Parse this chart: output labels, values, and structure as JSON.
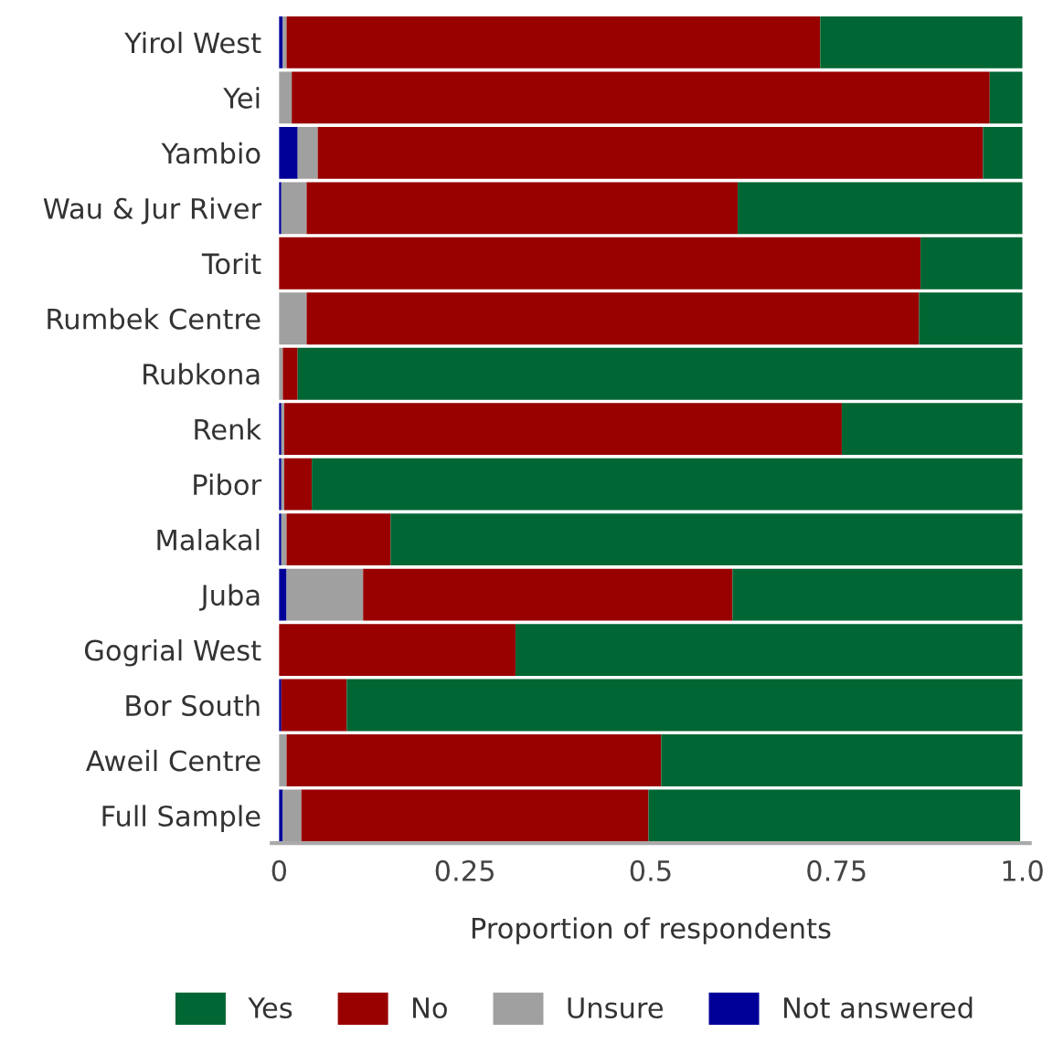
{
  "chart_data": {
    "type": "bar",
    "orientation": "horizontal",
    "stacked": true,
    "xlabel": "Proportion of respondents",
    "categories": [
      "Yirol West",
      "Yei",
      "Yambio",
      "Wau & Jur River",
      "Torit",
      "Rumbek Centre",
      "Rubkona",
      "Renk",
      "Pibor",
      "Malakal",
      "Juba",
      "Gogrial West",
      "Bor South",
      "Aweil Centre",
      "Full Sample"
    ],
    "series": [
      {
        "name": "Not answered",
        "color": "#000099",
        "values": [
          0.005,
          0,
          0.025,
          0.003,
          0,
          0,
          0,
          0.003,
          0.003,
          0.003,
          0.01,
          0,
          0.003,
          0,
          0.005
        ]
      },
      {
        "name": "Unsure",
        "color": "#a0a0a0",
        "values": [
          0.005,
          0.017,
          0.027,
          0.034,
          0,
          0.037,
          0.005,
          0.004,
          0.004,
          0.007,
          0.103,
          0,
          0,
          0.01,
          0.025
        ]
      },
      {
        "name": "No",
        "color": "#990000",
        "values": [
          0.718,
          0.939,
          0.895,
          0.58,
          0.863,
          0.824,
          0.02,
          0.75,
          0.037,
          0.14,
          0.497,
          0.318,
          0.088,
          0.504,
          0.467
        ]
      },
      {
        "name": "Yes",
        "color": "#006633",
        "values": [
          0.272,
          0.044,
          0.053,
          0.383,
          0.137,
          0.139,
          0.975,
          0.243,
          0.956,
          0.85,
          0.39,
          0.682,
          0.909,
          0.486,
          0.5
        ]
      }
    ],
    "xlim": [
      -0.01,
      1.01
    ],
    "xticks": [
      0,
      0.25,
      0.5,
      {
        "value": 0.75,
        "label": "0.75"
      },
      {
        "value": 1.0,
        "label": "1.0"
      }
    ],
    "legend": "bottom",
    "grid": false
  }
}
